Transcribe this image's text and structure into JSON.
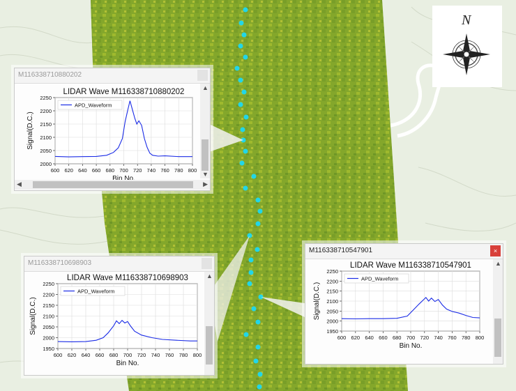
{
  "map": {
    "compass_label": "N"
  },
  "windows": [
    {
      "title": "M116338710880202",
      "active": false,
      "chart_data": {
        "type": "line",
        "title": "LIDAR Wave M116338710880202",
        "xlabel": "Bin No.",
        "ylabel": "Signal(D.C.)",
        "xlim": [
          600,
          800
        ],
        "ylim": [
          2000,
          2250
        ],
        "xticks": [
          600,
          620,
          640,
          660,
          680,
          700,
          720,
          740,
          760,
          780,
          800
        ],
        "yticks": [
          2000,
          2050,
          2100,
          2150,
          2200,
          2250
        ],
        "legend": "top-left",
        "series": [
          {
            "name": "APD_Waveform",
            "color": "#1a2be6",
            "x": [
              600,
              620,
              640,
              660,
              675,
              685,
              692,
              698,
              702,
              706,
              709,
              712,
              716,
              719,
              722,
              726,
              730,
              734,
              738,
              742,
              750,
              760,
              780,
              800
            ],
            "y": [
              2028,
              2026,
              2027,
              2028,
              2032,
              2043,
              2060,
              2095,
              2160,
              2205,
              2238,
              2210,
              2172,
              2150,
              2162,
              2145,
              2095,
              2062,
              2040,
              2032,
              2029,
              2030,
              2027,
              2027
            ]
          }
        ]
      }
    },
    {
      "title": "M116338710698903",
      "active": false,
      "chart_data": {
        "type": "line",
        "title": "LIDAR Wave M116338710698903",
        "xlabel": "Bin No.",
        "ylabel": "Signal(D.C.)",
        "xlim": [
          600,
          800
        ],
        "ylim": [
          1950,
          2250
        ],
        "xticks": [
          600,
          620,
          640,
          660,
          680,
          700,
          720,
          740,
          760,
          780,
          800
        ],
        "yticks": [
          1950,
          2000,
          2050,
          2100,
          2150,
          2200,
          2250
        ],
        "legend": "top-left",
        "series": [
          {
            "name": "APD_Waveform",
            "color": "#1a2be6",
            "x": [
              600,
              620,
              640,
              655,
              665,
              672,
              680,
              684,
              688,
              692,
              696,
              700,
              704,
              710,
              720,
              735,
              750,
              770,
              790,
              800
            ],
            "y": [
              1982,
              1981,
              1982,
              1988,
              2000,
              2022,
              2055,
              2078,
              2065,
              2080,
              2068,
              2075,
              2055,
              2030,
              2012,
              2000,
              1992,
              1988,
              1985,
              1985
            ]
          }
        ]
      }
    },
    {
      "title": "M116338710547901",
      "active": true,
      "close_label": "×",
      "chart_data": {
        "type": "line",
        "title": "LIDAR Wave M116338710547901",
        "xlabel": "Bin No.",
        "ylabel": "Signal(D.C.)",
        "xlim": [
          600,
          800
        ],
        "ylim": [
          1950,
          2250
        ],
        "xticks": [
          600,
          620,
          640,
          660,
          680,
          700,
          720,
          740,
          760,
          780,
          800
        ],
        "yticks": [
          1950,
          2000,
          2050,
          2100,
          2150,
          2200,
          2250
        ],
        "legend": "top-left",
        "series": [
          {
            "name": "APD_Waveform",
            "color": "#1a2be6",
            "x": [
              600,
              620,
              640,
              660,
              680,
              695,
              705,
              712,
              718,
              722,
              726,
              730,
              735,
              740,
              746,
              752,
              760,
              770,
              780,
              790,
              800
            ],
            "y": [
              2012,
              2011,
              2012,
              2012,
              2014,
              2025,
              2060,
              2085,
              2105,
              2118,
              2100,
              2115,
              2098,
              2108,
              2080,
              2060,
              2048,
              2040,
              2028,
              2018,
              2016
            ]
          }
        ]
      }
    }
  ]
}
